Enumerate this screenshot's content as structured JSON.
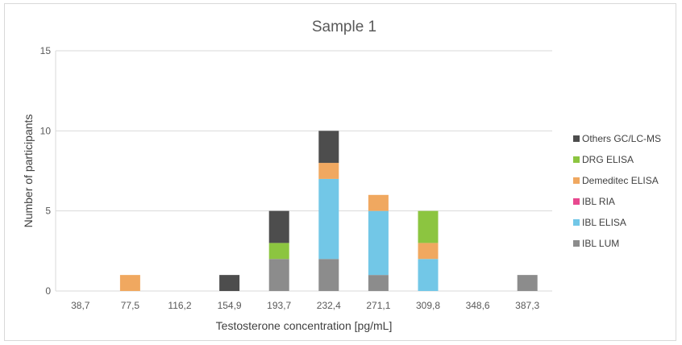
{
  "chart_data": {
    "type": "bar",
    "stacked": true,
    "title": "Sample 1",
    "xlabel": "Testosterone concentration [pg/mL]",
    "ylabel": "Number of participants",
    "ylim": [
      0,
      15
    ],
    "yticks": [
      "0",
      "5",
      "10",
      "15"
    ],
    "grid": "horizontal",
    "legend_position": "right",
    "categories": [
      "38,7",
      "77,5",
      "116,2",
      "154,9",
      "193,7",
      "232,4",
      "271,1",
      "309,8",
      "348,6",
      "387,3"
    ],
    "series": [
      {
        "name": "IBL LUM",
        "color": "#8c8c8c",
        "values": [
          0,
          0,
          0,
          0,
          2,
          2,
          1,
          0,
          0,
          1
        ]
      },
      {
        "name": "IBL ELISA",
        "color": "#72c7e7",
        "values": [
          0,
          0,
          0,
          0,
          0,
          5,
          4,
          2,
          0,
          0
        ]
      },
      {
        "name": "IBL RIA",
        "color": "#e8498f",
        "values": [
          0,
          0,
          0,
          0,
          0,
          0,
          0,
          0,
          0,
          0
        ]
      },
      {
        "name": "Demeditec ELISA",
        "color": "#f0a860",
        "values": [
          0,
          1,
          0,
          0,
          0,
          1,
          1,
          1,
          0,
          0
        ]
      },
      {
        "name": "DRG ELISA",
        "color": "#8cc540",
        "values": [
          0,
          0,
          0,
          0,
          1,
          0,
          0,
          2,
          0,
          0
        ]
      },
      {
        "name": "Others GC/LC-MS",
        "color": "#4d4d4d",
        "values": [
          0,
          0,
          0,
          1,
          2,
          2,
          0,
          0,
          0,
          0
        ]
      }
    ],
    "legend_order": [
      "Others GC/LC-MS",
      "DRG ELISA",
      "Demeditec ELISA",
      "IBL RIA",
      "IBL ELISA",
      "IBL LUM"
    ]
  }
}
